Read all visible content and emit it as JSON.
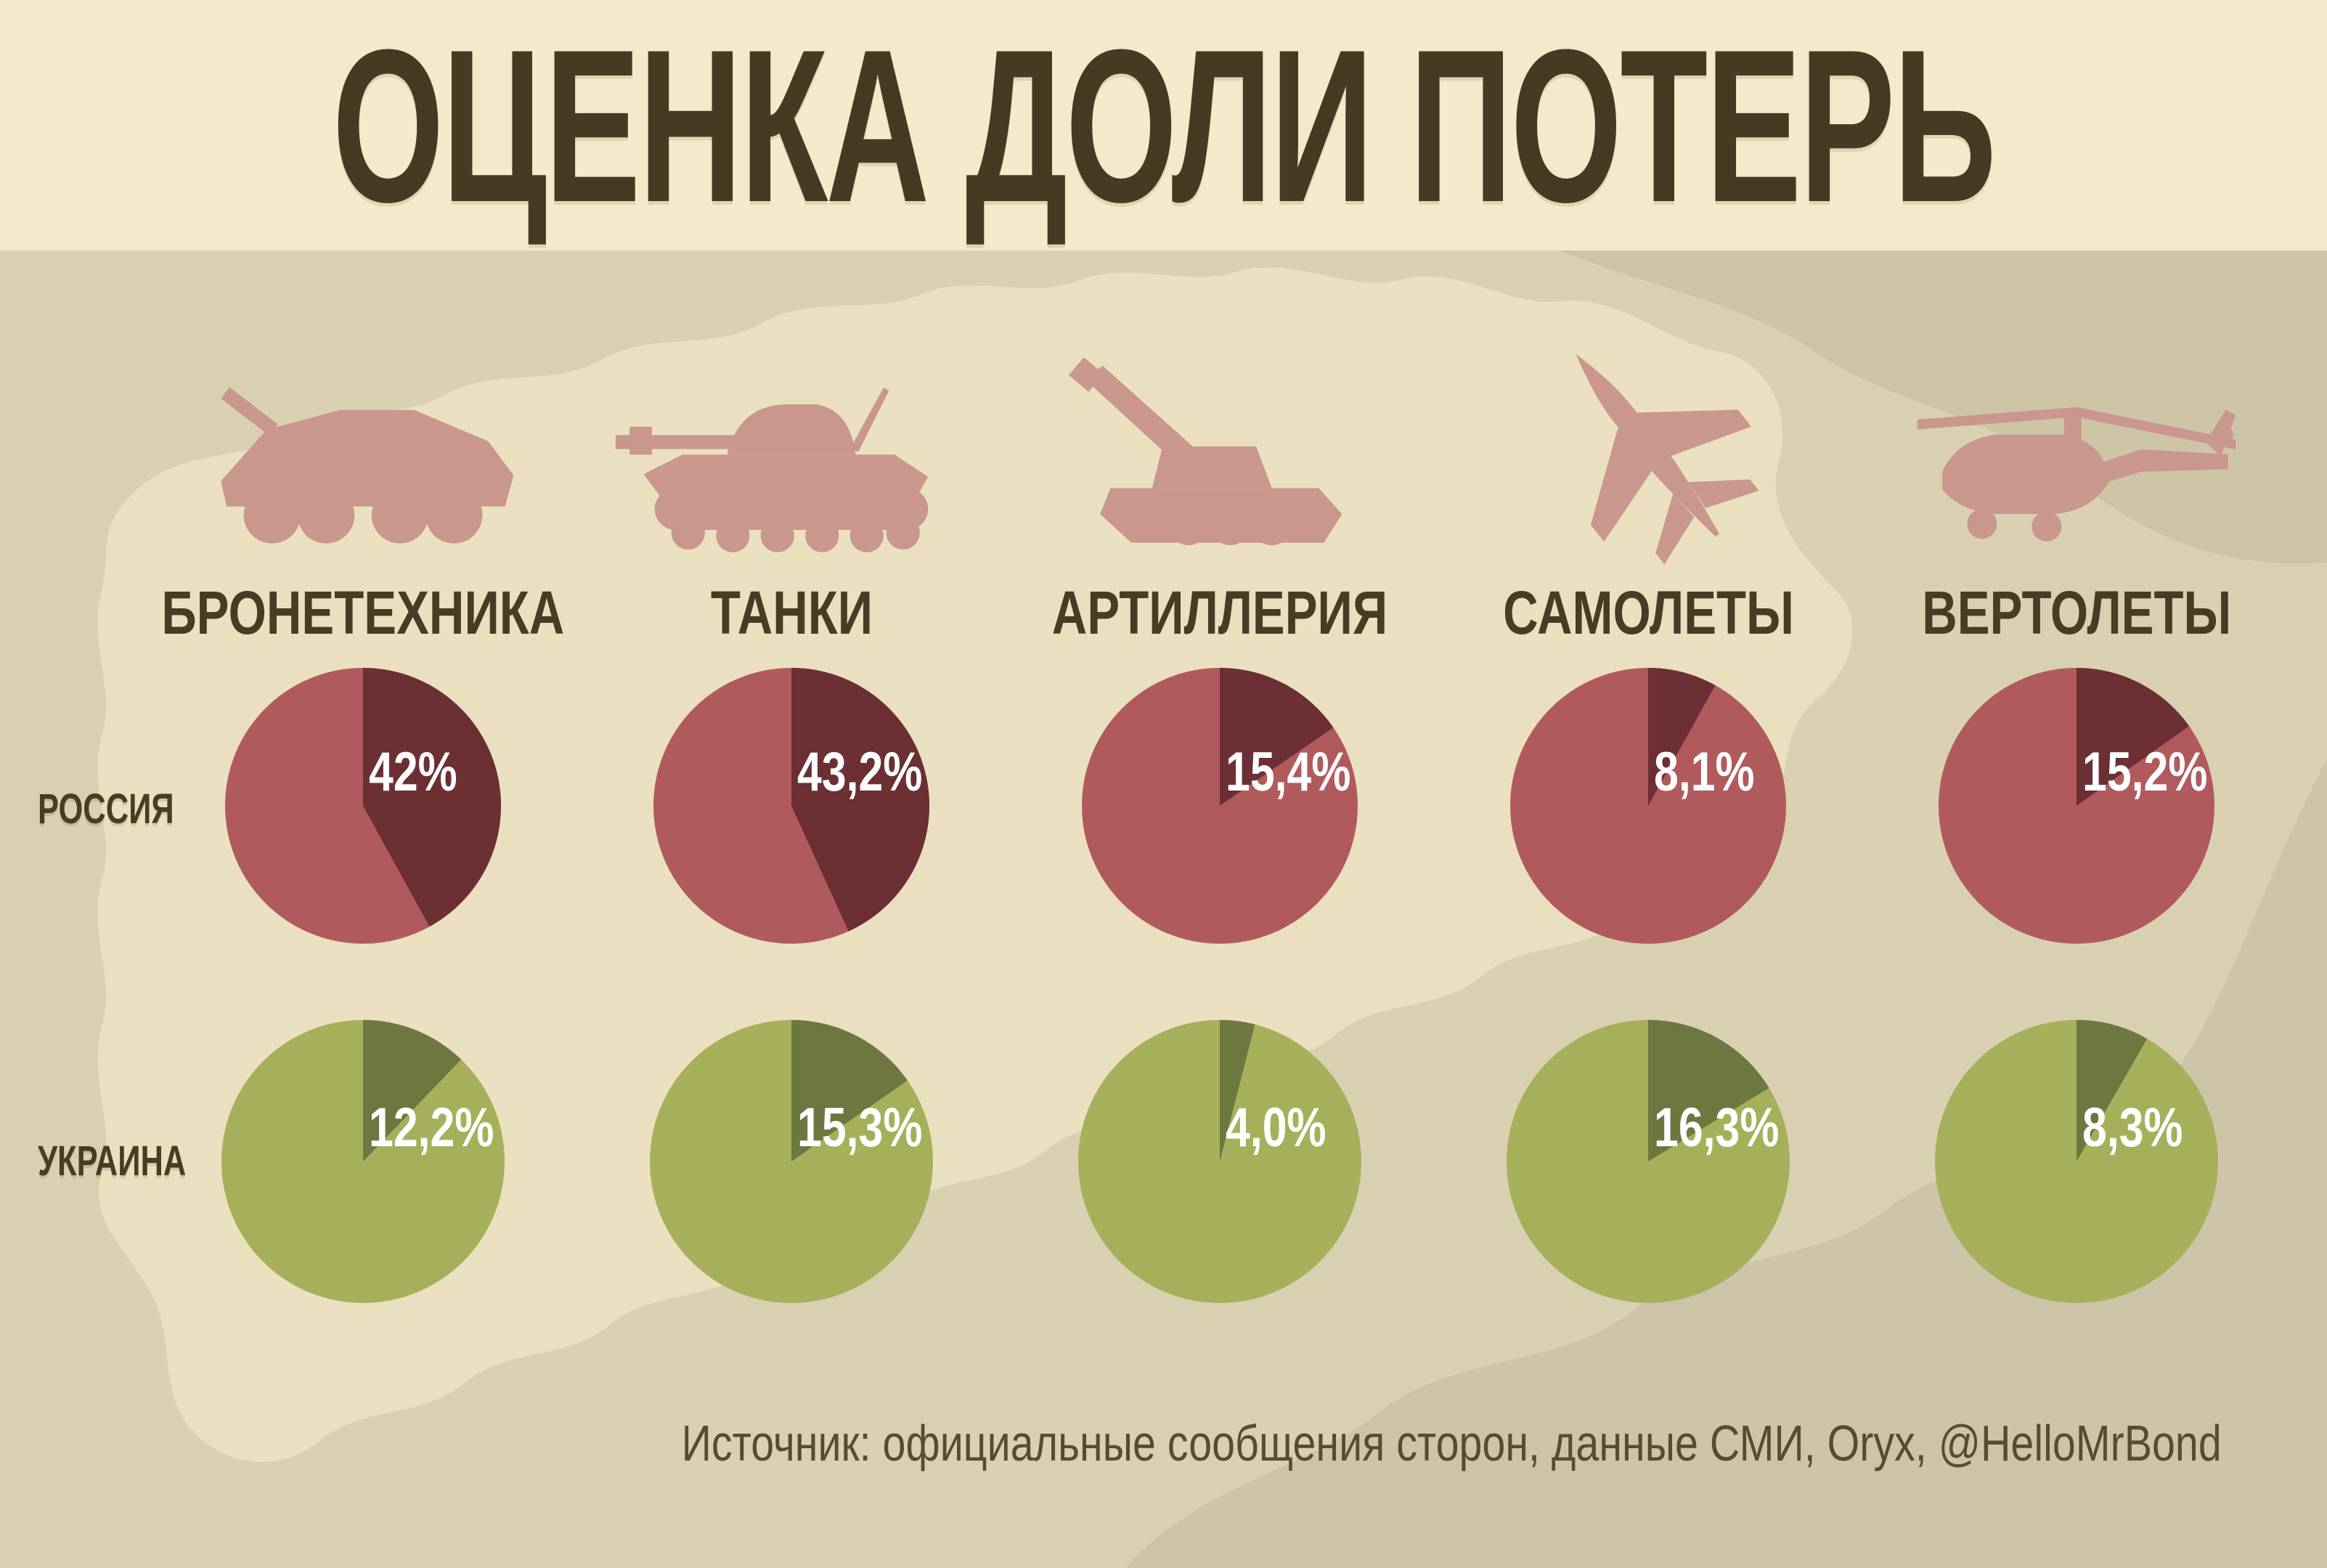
{
  "header": {
    "title": "ОЦЕНКА ДОЛИ ПОТЕРЬ"
  },
  "footer": {
    "source": "Источник: официальные сообщения сторон, данные СМИ, Oryx, @HelloMrBond"
  },
  "colors": {
    "header_bg": "#f3eacd",
    "body_bg": "#d9d0b2",
    "map_light": "#eae0c0",
    "map_mid": "#cdc4a8",
    "icon": "#c9978d",
    "text_dark": "#4a3b26",
    "value_label": "#ffffff"
  },
  "chart_data": {
    "type": "pie",
    "title": "ОЦЕНКА ДОЛИ ПОТЕРЬ",
    "categories": [
      {
        "key": "armored-vehicles",
        "label": "БРОНЕТЕХНИКА",
        "icon": "apc-icon"
      },
      {
        "key": "tanks",
        "label": "ТАНКИ",
        "icon": "tank-icon"
      },
      {
        "key": "artillery",
        "label": "АРТИЛЛЕРИЯ",
        "icon": "howitzer-icon"
      },
      {
        "key": "aircraft",
        "label": "САМОЛЕТЫ",
        "icon": "jet-icon"
      },
      {
        "key": "helicopters",
        "label": "ВЕРТОЛЕТЫ",
        "icon": "helicopter-icon"
      }
    ],
    "series": [
      {
        "key": "russia",
        "name": "РОССИЯ",
        "values": [
          42,
          43.2,
          15.4,
          8.1,
          15.2
        ],
        "value_labels": [
          "42%",
          "43,2%",
          "15,4%",
          "8,1%",
          "15,2%"
        ],
        "colors": {
          "base": "#b15a5e",
          "slice": "#6b2f34"
        }
      },
      {
        "key": "ukraine",
        "name": "УКРАИНА",
        "values": [
          12.2,
          15.3,
          4.0,
          16.3,
          8.3
        ],
        "value_labels": [
          "12,2%",
          "15,3%",
          "4,0%",
          "16,3%",
          "8,3%"
        ],
        "colors": {
          "base": "#a6b05b",
          "slice": "#6d7740"
        }
      }
    ],
    "layout": {
      "slice_starts_at": "12-oclock",
      "direction": "clockwise",
      "legend": "none",
      "grid": false,
      "value_label_position": "upper-right-of-center"
    }
  }
}
